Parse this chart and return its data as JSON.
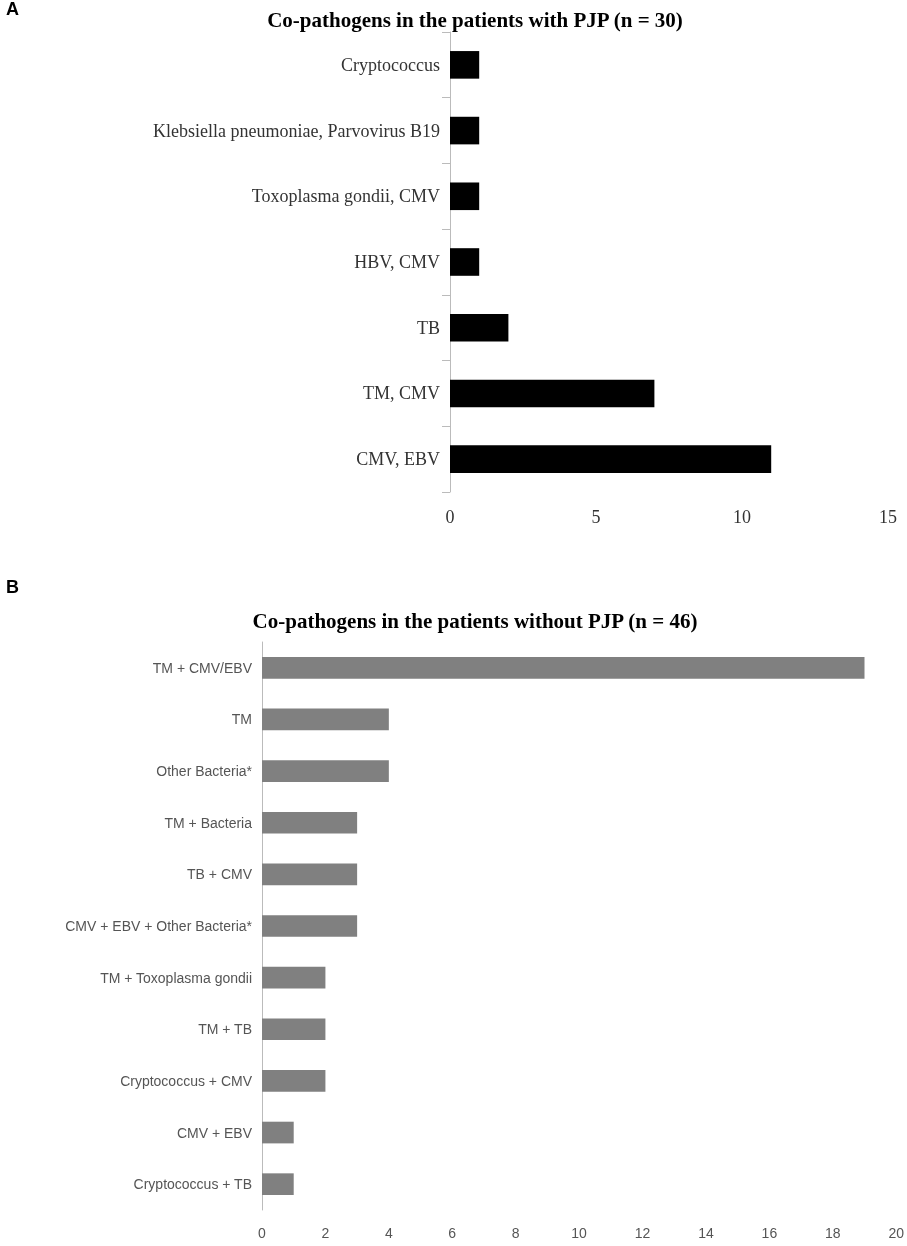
{
  "chart_data": [
    {
      "type": "bar",
      "orientation": "horizontal",
      "title": "Co-pathogens in the patients with PJP (n = 30)",
      "annotations": [
        "A"
      ],
      "categories": [
        "Cryptococcus",
        "Klebsiella pneumoniae, Parvovirus B19",
        "Toxoplasma gondii, CMV",
        "HBV, CMV",
        "TB",
        "TM, CMV",
        "CMV, EBV"
      ],
      "values": [
        1,
        1,
        1,
        1,
        2,
        7,
        11
      ],
      "color": "#000000",
      "xlim": [
        0,
        15
      ],
      "xticks": [
        0,
        5,
        10,
        15
      ],
      "grid": false
    },
    {
      "type": "bar",
      "orientation": "horizontal",
      "title": "Co-pathogens in the patients without PJP (n = 46)",
      "annotations": [
        "B"
      ],
      "categories": [
        "TM + CMV/EBV",
        "TM",
        "Other Bacteria*",
        "TM + Bacteria",
        "TB + CMV",
        "CMV + EBV + Other Bacteria*",
        "TM + Toxoplasma gondii",
        "TM + TB",
        "Cryptococcus + CMV",
        "CMV + EBV",
        "Cryptococcus + TB"
      ],
      "values": [
        19,
        4,
        4,
        3,
        3,
        3,
        2,
        2,
        2,
        1,
        1
      ],
      "color": "#808080",
      "xlim": [
        0,
        20
      ],
      "xticks": [
        0,
        2,
        4,
        6,
        8,
        10,
        12,
        14,
        16,
        18,
        20
      ],
      "grid": false
    }
  ]
}
